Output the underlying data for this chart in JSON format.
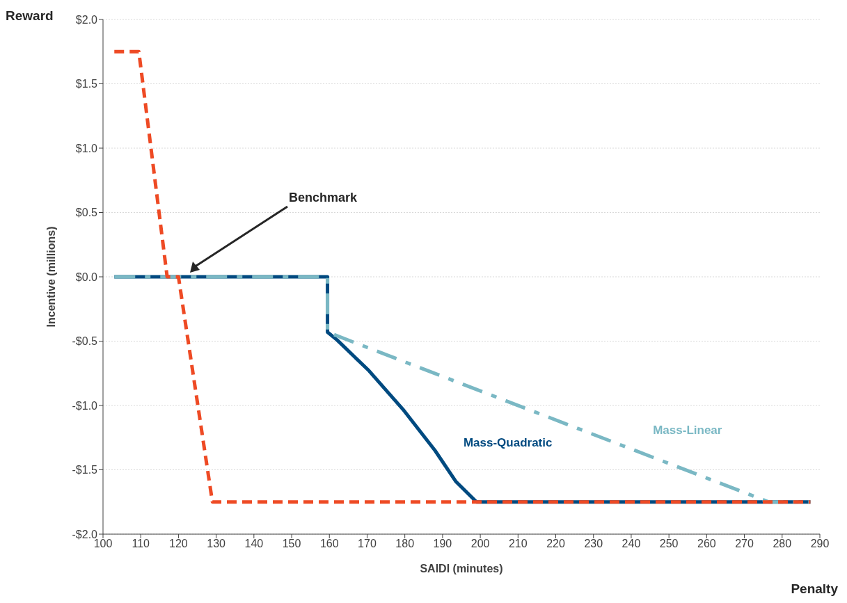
{
  "chart_data": {
    "type": "line",
    "xlabel": "SAIDI (minutes)",
    "ylabel": "Incentive (millions)",
    "annotations": [
      "Reward",
      "Penalty",
      "Benchmark"
    ],
    "xlim": [
      100,
      290
    ],
    "xticks": [
      100,
      110,
      120,
      130,
      140,
      150,
      160,
      170,
      180,
      190,
      200,
      210,
      220,
      230,
      240,
      250,
      260,
      270,
      280,
      290
    ],
    "ylim": [
      -2,
      2
    ],
    "yticks": [
      {
        "value": -2,
        "label": "-$2.0"
      },
      {
        "value": -1.5,
        "label": "-$1.5"
      },
      {
        "value": -1,
        "label": "-$1.0"
      },
      {
        "value": -0.5,
        "label": "-$0.5"
      },
      {
        "value": 0,
        "label": "$0.0"
      },
      {
        "value": 0.5,
        "label": "$0.5"
      },
      {
        "value": 1,
        "label": "$1.0"
      },
      {
        "value": 1.5,
        "label": "$1.5"
      },
      {
        "value": 2,
        "label": "$2.0"
      }
    ],
    "grid": "y",
    "marker": "none",
    "series": [
      {
        "name": "Mass-Quadratic",
        "color": "#004a80",
        "line_style": "solid",
        "x": [
          103,
          159.5,
          159.5,
          162,
          170.5,
          179.5,
          188,
          193.5,
          199,
          287.5
        ],
        "values": [
          0,
          0,
          -0.43,
          -0.49,
          -0.73,
          -1.03,
          -1.35,
          -1.59,
          -1.75,
          -1.75
        ]
      },
      {
        "name": "Mass-Linear",
        "color": "#7ab8c4",
        "line_style": "dashdot",
        "x": [
          103,
          159.5,
          159.5,
          276.5,
          287.5
        ],
        "values": [
          0,
          0,
          -0.43,
          -1.75,
          -1.75
        ]
      },
      {
        "color": "#ee4a24",
        "line_style": "dashed",
        "x": [
          103,
          109.5,
          117,
          120,
          129,
          287.5
        ],
        "values": [
          1.75,
          1.75,
          0,
          0,
          -1.75,
          -1.75
        ]
      }
    ]
  }
}
